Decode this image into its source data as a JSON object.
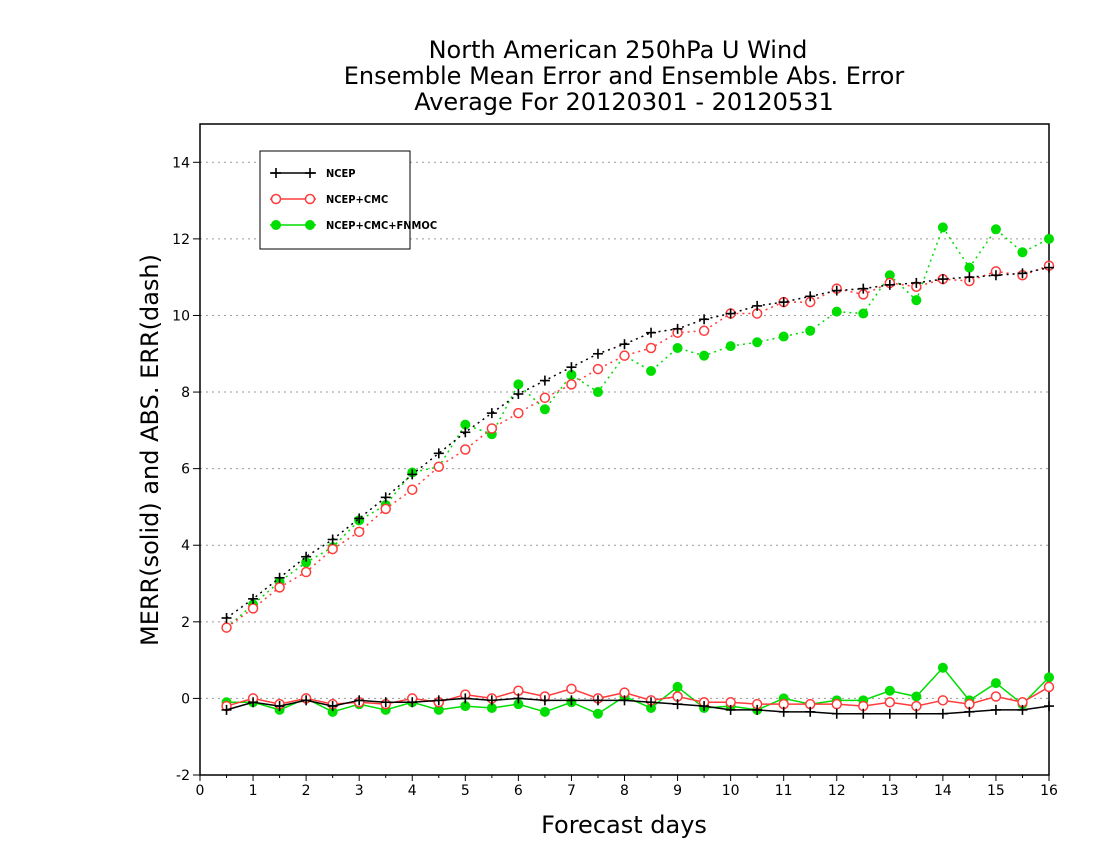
{
  "chart_data": {
    "type": "line",
    "title_lines": [
      "North American 250hPa U Wind",
      "Ensemble Mean Error and Ensemble Abs. Error",
      "Average For 20120301 - 20120531"
    ],
    "xlabel": "Forecast days",
    "ylabel": "MERR(solid) and ABS. ERR(dash)",
    "xlim": [
      0,
      16
    ],
    "ylim": [
      -2,
      15
    ],
    "x_ticks": [
      0,
      1,
      2,
      3,
      4,
      5,
      6,
      7,
      8,
      9,
      10,
      11,
      12,
      13,
      14,
      15,
      16
    ],
    "y_ticks": [
      -2,
      0,
      2,
      4,
      6,
      8,
      10,
      12,
      14
    ],
    "grid": "horizontal dotted",
    "legend_position": "top-left",
    "x": [
      0.5,
      1,
      1.5,
      2,
      2.5,
      3,
      3.5,
      4,
      4.5,
      5,
      5.5,
      6,
      6.5,
      7,
      7.5,
      8,
      8.5,
      9,
      9.5,
      10,
      10.5,
      11,
      11.5,
      12,
      12.5,
      13,
      13.5,
      14,
      14.5,
      15,
      15.5,
      16
    ],
    "series": [
      {
        "name": "NCEP",
        "color": "#000000",
        "marker": "plus",
        "abs_err": [
          2.1,
          2.6,
          3.15,
          3.7,
          4.15,
          4.7,
          5.25,
          5.85,
          6.4,
          6.95,
          7.45,
          7.95,
          8.3,
          8.65,
          9.0,
          9.25,
          9.55,
          9.65,
          9.9,
          10.05,
          10.25,
          10.35,
          10.5,
          10.65,
          10.7,
          10.8,
          10.85,
          10.95,
          11.0,
          11.05,
          11.1,
          11.25
        ],
        "mean_err": [
          -0.3,
          -0.1,
          -0.2,
          -0.05,
          -0.2,
          -0.05,
          -0.1,
          -0.1,
          -0.05,
          0.0,
          -0.05,
          0.0,
          -0.05,
          -0.05,
          -0.05,
          -0.05,
          -0.1,
          -0.15,
          -0.2,
          -0.3,
          -0.3,
          -0.35,
          -0.35,
          -0.4,
          -0.4,
          -0.4,
          -0.4,
          -0.4,
          -0.35,
          -0.3,
          -0.3,
          -0.2
        ]
      },
      {
        "name": "NCEP+CMC",
        "color": "#ff3b3b",
        "marker": "open-circle",
        "abs_err": [
          1.85,
          2.35,
          2.9,
          3.3,
          3.9,
          4.35,
          4.95,
          5.45,
          6.05,
          6.5,
          7.05,
          7.45,
          7.85,
          8.2,
          8.6,
          8.95,
          9.15,
          9.55,
          9.6,
          10.05,
          10.05,
          10.35,
          10.35,
          10.7,
          10.55,
          10.85,
          10.75,
          10.95,
          10.9,
          11.15,
          11.05,
          11.3
        ],
        "mean_err": [
          -0.2,
          0.0,
          -0.15,
          0.0,
          -0.15,
          -0.1,
          -0.15,
          0.0,
          -0.1,
          0.1,
          0.0,
          0.2,
          0.05,
          0.25,
          0.0,
          0.15,
          -0.05,
          0.05,
          -0.1,
          -0.1,
          -0.15,
          -0.15,
          -0.15,
          -0.15,
          -0.2,
          -0.1,
          -0.2,
          -0.05,
          -0.15,
          0.05,
          -0.1,
          0.3
        ]
      },
      {
        "name": "NCEP+CMC+FNMOC",
        "color": "#00dd00",
        "marker": "filled-circle",
        "abs_err": [
          1.85,
          2.45,
          3.05,
          3.55,
          3.95,
          4.65,
          5.05,
          5.9,
          6.05,
          7.15,
          6.9,
          8.2,
          7.55,
          8.45,
          8.0,
          8.95,
          8.55,
          9.15,
          8.95,
          9.2,
          9.3,
          9.45,
          9.6,
          10.1,
          10.05,
          11.05,
          10.4,
          12.3,
          11.25,
          12.25,
          11.65,
          12.0
        ],
        "mean_err": [
          -0.1,
          -0.1,
          -0.3,
          0.0,
          -0.35,
          -0.15,
          -0.3,
          -0.1,
          -0.3,
          -0.2,
          -0.25,
          -0.15,
          -0.35,
          -0.1,
          -0.4,
          0.05,
          -0.25,
          0.3,
          -0.25,
          -0.2,
          -0.3,
          0.0,
          -0.15,
          -0.05,
          -0.05,
          0.2,
          0.05,
          0.8,
          -0.05,
          0.4,
          -0.15,
          0.55
        ]
      }
    ]
  }
}
